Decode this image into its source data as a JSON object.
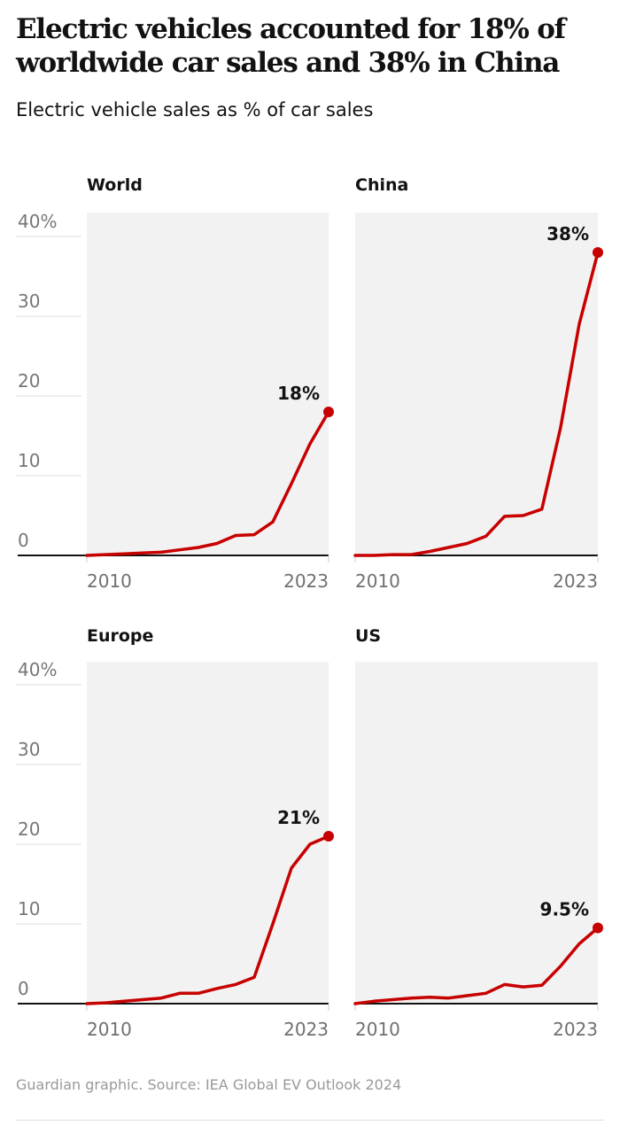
{
  "header": {
    "title": "Electric vehicles accounted for 18% of worldwide car sales and 38% in China",
    "subtitle": "Electric vehicle sales as % of car sales"
  },
  "footer": {
    "source": "Guardian graphic. Source: IEA Global EV Outlook 2024"
  },
  "colors": {
    "line": "#c70000",
    "panel_bg": "#f2f2f2",
    "baseline": "#121212",
    "grid": "#dcdcdc"
  },
  "chart_data": [
    {
      "type": "line",
      "title": "World",
      "x": [
        2010,
        2011,
        2012,
        2013,
        2014,
        2015,
        2016,
        2017,
        2018,
        2019,
        2020,
        2021,
        2022,
        2023
      ],
      "values": [
        0,
        0.1,
        0.2,
        0.3,
        0.4,
        0.7,
        1.0,
        1.5,
        2.5,
        2.6,
        4.2,
        9,
        14,
        18
      ],
      "end_label": "18%",
      "ylim": [
        0,
        40
      ],
      "yticks": [
        "0",
        "10",
        "20",
        "30",
        "40%"
      ],
      "xticks": [
        "2010",
        "2023"
      ],
      "grid": true
    },
    {
      "type": "line",
      "title": "China",
      "x": [
        2010,
        2011,
        2012,
        2013,
        2014,
        2015,
        2016,
        2017,
        2018,
        2019,
        2020,
        2021,
        2022,
        2023
      ],
      "values": [
        0,
        0,
        0.1,
        0.1,
        0.5,
        1.0,
        1.5,
        2.4,
        4.9,
        5.0,
        5.8,
        16,
        29,
        38
      ],
      "end_label": "38%",
      "ylim": [
        0,
        40
      ],
      "xticks": [
        "2010",
        "2023"
      ]
    },
    {
      "type": "line",
      "title": "Europe",
      "x": [
        2010,
        2011,
        2012,
        2013,
        2014,
        2015,
        2016,
        2017,
        2018,
        2019,
        2020,
        2021,
        2022,
        2023
      ],
      "values": [
        0,
        0.1,
        0.3,
        0.5,
        0.7,
        1.3,
        1.3,
        1.9,
        2.4,
        3.3,
        10,
        17,
        20,
        21
      ],
      "end_label": "21%",
      "ylim": [
        0,
        40
      ],
      "yticks": [
        "0",
        "10",
        "20",
        "30",
        "40%"
      ],
      "xticks": [
        "2010",
        "2023"
      ],
      "grid": true
    },
    {
      "type": "line",
      "title": "US",
      "x": [
        2010,
        2011,
        2012,
        2013,
        2014,
        2015,
        2016,
        2017,
        2018,
        2019,
        2020,
        2021,
        2022,
        2023
      ],
      "values": [
        0,
        0.3,
        0.5,
        0.7,
        0.8,
        0.7,
        1.0,
        1.3,
        2.4,
        2.1,
        2.3,
        4.7,
        7.5,
        9.5
      ],
      "end_label": "9.5%",
      "ylim": [
        0,
        40
      ],
      "xticks": [
        "2010",
        "2023"
      ]
    }
  ]
}
